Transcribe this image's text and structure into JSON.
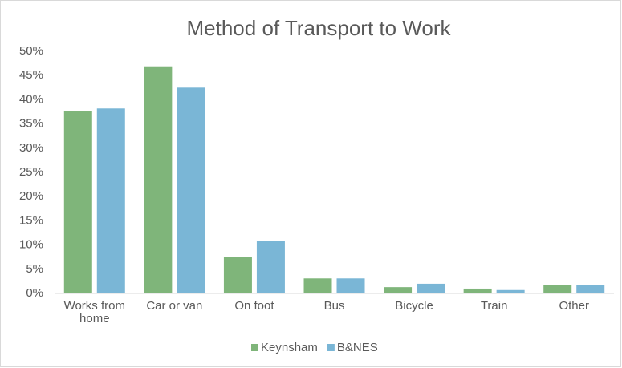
{
  "chart_data": {
    "type": "bar",
    "title": "Method of Transport to Work",
    "categories": [
      "Works from home",
      "Car or van",
      "On foot",
      "Bus",
      "Bicycle",
      "Train",
      "Other"
    ],
    "series": [
      {
        "name": "Keynsham",
        "color": "#7fb57a",
        "values": [
          37.6,
          46.9,
          7.5,
          3.1,
          1.3,
          1.0,
          1.7
        ]
      },
      {
        "name": "B&NES",
        "color": "#7ab6d6",
        "values": [
          38.2,
          42.5,
          10.9,
          3.1,
          2.0,
          0.7,
          1.7
        ]
      }
    ],
    "ylim": [
      0,
      50
    ],
    "yticks": [
      {
        "value": 0,
        "label": "0%"
      },
      {
        "value": 5,
        "label": "5%"
      },
      {
        "value": 10,
        "label": "10%"
      },
      {
        "value": 15,
        "label": "15%"
      },
      {
        "value": 20,
        "label": "20%"
      },
      {
        "value": 25,
        "label": "25%"
      },
      {
        "value": 30,
        "label": "30%"
      },
      {
        "value": 35,
        "label": "35%"
      },
      {
        "value": 40,
        "label": "40%"
      },
      {
        "value": 45,
        "label": "45%"
      },
      {
        "value": 50,
        "label": "50%"
      }
    ],
    "grid": false,
    "legend": "bottom"
  }
}
